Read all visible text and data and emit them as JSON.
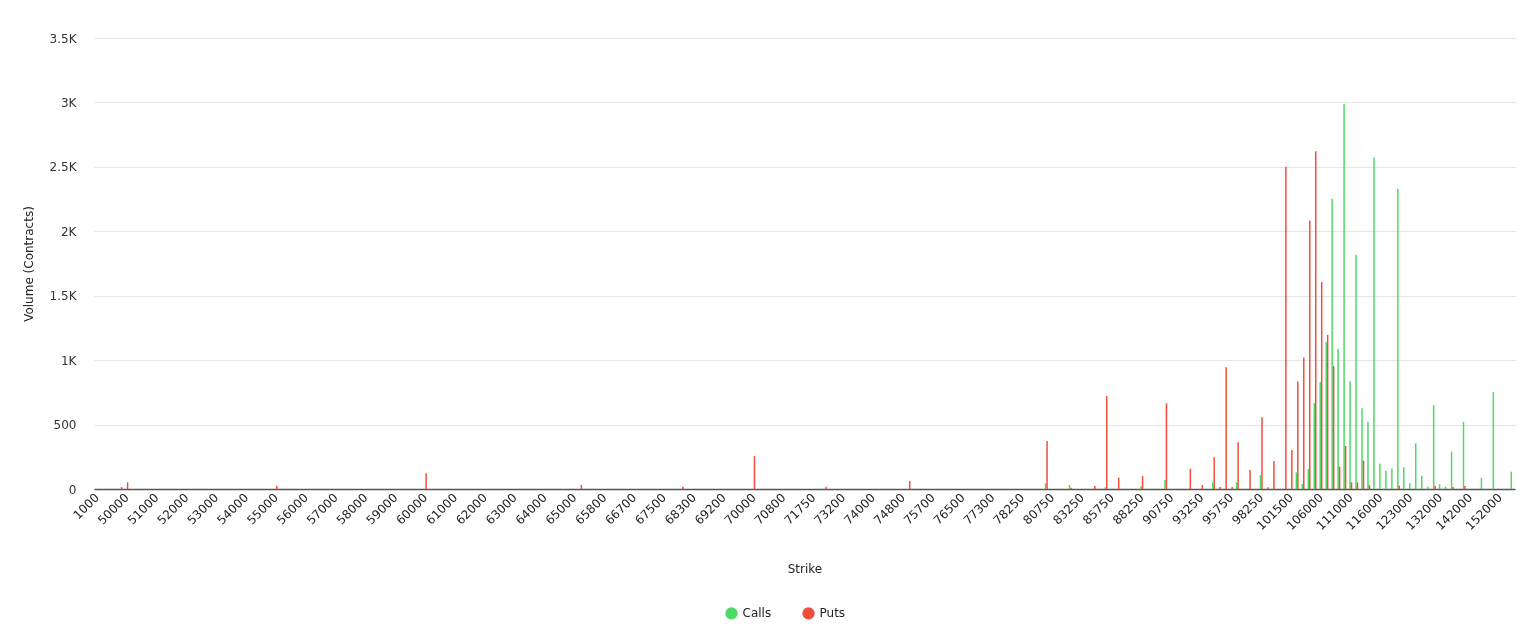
{
  "chart_data": {
    "type": "bar",
    "xlabel": "Strike",
    "ylabel": "Volume (Contracts)",
    "categories": [
      "1000",
      null,
      null,
      null,
      null,
      "50000",
      null,
      null,
      null,
      null,
      "51000",
      null,
      null,
      null,
      null,
      "52000",
      null,
      null,
      null,
      null,
      "53000",
      null,
      null,
      null,
      null,
      "54000",
      null,
      null,
      null,
      null,
      "55000",
      null,
      null,
      null,
      null,
      "56000",
      null,
      null,
      null,
      null,
      "57000",
      null,
      null,
      null,
      null,
      "58000",
      null,
      null,
      null,
      null,
      "59000",
      null,
      null,
      null,
      null,
      "60000",
      null,
      null,
      null,
      null,
      "61000",
      null,
      null,
      null,
      null,
      "62000",
      null,
      null,
      null,
      null,
      "63000",
      null,
      null,
      null,
      null,
      "64000",
      null,
      null,
      null,
      null,
      "65000",
      null,
      null,
      null,
      null,
      "65800",
      null,
      null,
      null,
      null,
      "66700",
      null,
      null,
      null,
      null,
      "67500",
      null,
      null,
      null,
      null,
      "68300",
      null,
      null,
      null,
      null,
      "69200",
      null,
      null,
      null,
      null,
      "70000",
      null,
      null,
      null,
      null,
      "70800",
      null,
      null,
      null,
      null,
      "71750",
      null,
      null,
      null,
      null,
      "73200",
      null,
      null,
      null,
      null,
      "74000",
      null,
      null,
      null,
      null,
      "74800",
      null,
      null,
      null,
      null,
      "75700",
      null,
      null,
      null,
      null,
      "76500",
      null,
      null,
      null,
      null,
      "77300",
      null,
      null,
      null,
      null,
      "78250",
      null,
      null,
      null,
      null,
      "80750",
      null,
      null,
      null,
      null,
      "83250",
      null,
      null,
      null,
      null,
      "85750",
      null,
      null,
      null,
      null,
      "88250",
      null,
      null,
      null,
      null,
      "90750",
      null,
      null,
      null,
      null,
      "93250",
      null,
      null,
      null,
      null,
      "95750",
      null,
      null,
      null,
      null,
      "98250",
      null,
      null,
      null,
      null,
      "101500",
      null,
      null,
      null,
      null,
      "106000",
      null,
      null,
      null,
      null,
      "111000",
      null,
      null,
      null,
      null,
      "116000",
      null,
      null,
      null,
      null,
      "123000",
      null,
      null,
      null,
      null,
      "132000",
      null,
      null,
      null,
      null,
      "142000",
      null,
      null,
      null,
      null,
      "152000",
      null,
      null
    ],
    "series": [
      {
        "name": "Calls",
        "color": "#4cd964",
        "values": [
          null,
          null,
          null,
          null,
          null,
          null,
          null,
          null,
          null,
          null,
          null,
          null,
          null,
          null,
          null,
          null,
          null,
          null,
          null,
          null,
          null,
          null,
          null,
          null,
          null,
          null,
          null,
          null,
          null,
          null,
          null,
          null,
          null,
          null,
          null,
          null,
          null,
          null,
          null,
          null,
          null,
          null,
          null,
          null,
          null,
          null,
          null,
          null,
          null,
          null,
          null,
          null,
          null,
          null,
          null,
          null,
          null,
          null,
          null,
          null,
          null,
          null,
          null,
          null,
          null,
          null,
          null,
          null,
          null,
          null,
          null,
          null,
          null,
          null,
          null,
          null,
          null,
          null,
          null,
          null,
          null,
          null,
          null,
          null,
          null,
          null,
          null,
          null,
          null,
          null,
          null,
          null,
          null,
          null,
          null,
          null,
          null,
          null,
          null,
          null,
          null,
          null,
          null,
          null,
          null,
          null,
          null,
          null,
          null,
          null,
          null,
          null,
          null,
          null,
          null,
          null,
          null,
          null,
          null,
          null,
          null,
          null,
          null,
          null,
          null,
          null,
          null,
          null,
          null,
          null,
          null,
          null,
          null,
          null,
          null,
          null,
          null,
          null,
          null,
          null,
          null,
          null,
          null,
          null,
          null,
          null,
          null,
          null,
          null,
          null,
          null,
          null,
          null,
          null,
          null,
          null,
          null,
          null,
          null,
          44,
          null,
          null,
          null,
          31,
          null,
          null,
          null,
          null,
          null,
          13,
          null,
          null,
          null,
          null,
          null,
          23,
          null,
          null,
          null,
          70,
          null,
          null,
          null,
          null,
          null,
          null,
          null,
          52,
          null,
          null,
          null,
          52,
          null,
          null,
          null,
          109,
          null,
          null,
          null,
          null,
          null,
          129,
          39,
          155,
          665,
          830,
          1138,
          2252,
          1089,
          2990,
          838,
          1818,
          626,
          522,
          2573,
          197,
          142,
          160,
          2330,
          168,
          44,
          354,
          103,
          18,
          652,
          36,
          18,
          290,
          null,
          522,
          null,
          null,
          88,
          null,
          752,
          null,
          null,
          134
        ]
      },
      {
        "name": "Puts",
        "color": "#f04e3a",
        "values": [
          null,
          null,
          null,
          null,
          15,
          52,
          null,
          null,
          null,
          null,
          null,
          null,
          null,
          null,
          null,
          null,
          null,
          null,
          null,
          null,
          null,
          null,
          null,
          null,
          null,
          null,
          null,
          null,
          null,
          null,
          26,
          null,
          null,
          null,
          null,
          null,
          null,
          null,
          null,
          null,
          null,
          null,
          null,
          null,
          null,
          null,
          null,
          null,
          null,
          null,
          null,
          null,
          null,
          null,
          null,
          122,
          null,
          null,
          null,
          null,
          null,
          null,
          null,
          null,
          null,
          null,
          null,
          null,
          null,
          null,
          null,
          null,
          null,
          null,
          null,
          null,
          null,
          null,
          null,
          null,
          null,
          31,
          null,
          null,
          null,
          null,
          null,
          null,
          null,
          null,
          null,
          null,
          null,
          null,
          null,
          null,
          null,
          null,
          18,
          null,
          null,
          null,
          null,
          null,
          null,
          null,
          null,
          null,
          null,
          null,
          255,
          null,
          null,
          null,
          null,
          null,
          null,
          null,
          null,
          null,
          null,
          null,
          18,
          null,
          null,
          null,
          null,
          null,
          null,
          null,
          null,
          null,
          null,
          null,
          null,
          null,
          62,
          null,
          null,
          null,
          null,
          null,
          null,
          null,
          null,
          null,
          null,
          null,
          null,
          null,
          null,
          null,
          null,
          null,
          null,
          null,
          null,
          null,
          null,
          372,
          null,
          null,
          null,
          10,
          null,
          null,
          null,
          23,
          null,
          721,
          null,
          90,
          null,
          null,
          null,
          100,
          null,
          null,
          null,
          665,
          null,
          null,
          null,
          158,
          null,
          31,
          null,
          246,
          15,
          944,
          15,
          362,
          null,
          147,
          null,
          556,
          13,
          217,
          null,
          2500,
          303,
          835,
          1021,
          2084,
          2622,
          1606,
          1195,
          954,
          173,
          334,
          52,
          52,
          220,
          31,
          null,
          null,
          null,
          null,
          26,
          null,
          null,
          null,
          null,
          null,
          23,
          null,
          null,
          15,
          null,
          23,
          null,
          null,
          null,
          null,
          null,
          null,
          null,
          null
        ]
      }
    ],
    "ylim": [
      0,
      3500
    ],
    "yticks": [
      0,
      500,
      {
        "value": 1000,
        "label": "1K"
      },
      {
        "value": 1500,
        "label": "1.5K"
      },
      {
        "value": 2000,
        "label": "2K"
      },
      {
        "value": 2500,
        "label": "2.5K"
      },
      {
        "value": 3000,
        "label": "3K"
      },
      {
        "value": 3500,
        "label": "3.5K"
      }
    ],
    "grid": "y",
    "legend": "bottom"
  }
}
